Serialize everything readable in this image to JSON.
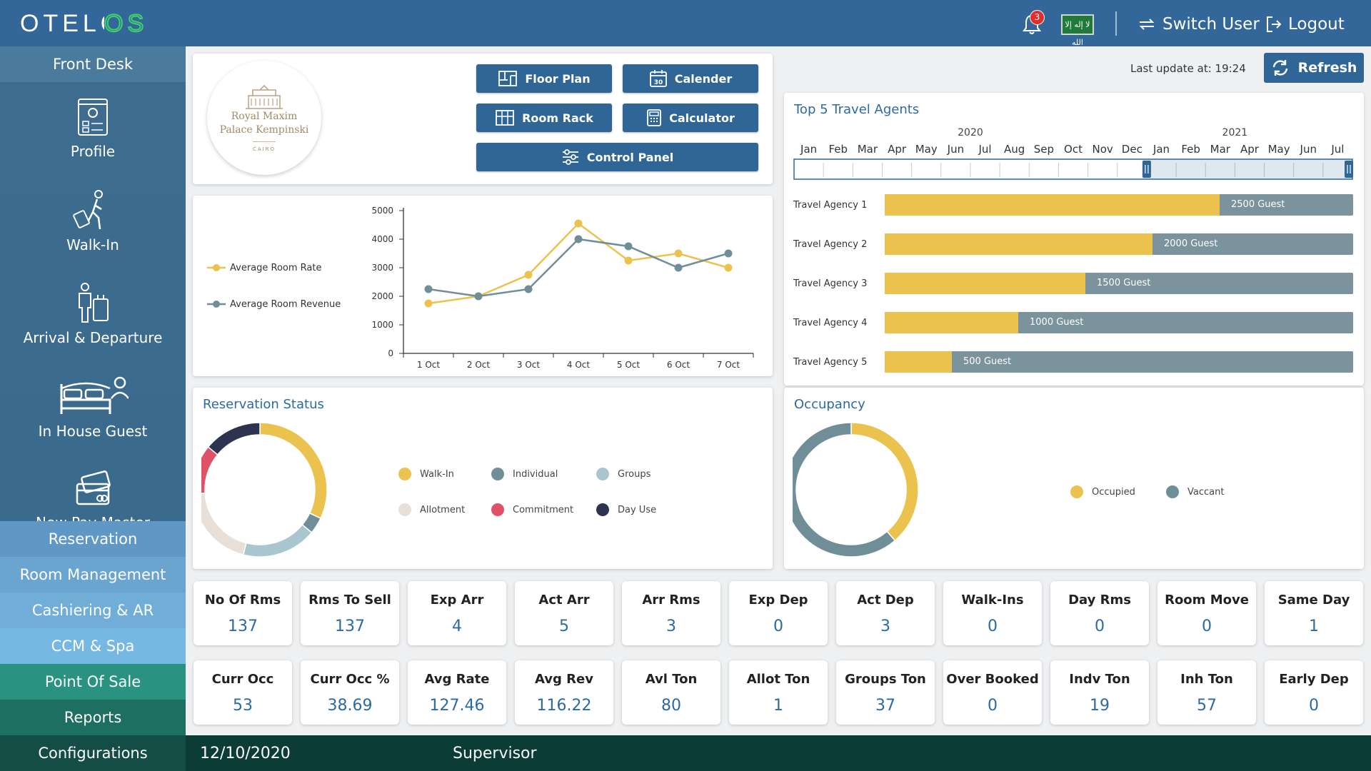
{
  "app": {
    "logo_text": "OTELOS"
  },
  "topbar": {
    "notifications": "3",
    "flag_label": "لا إله إلا الله",
    "switch_user": "Switch User",
    "logout": "Logout"
  },
  "sidebar": {
    "header": "Front Desk",
    "tiles": [
      {
        "label": "Profile",
        "icon": "profile-card-icon"
      },
      {
        "label": "Walk-In",
        "icon": "walking-guest-icon"
      },
      {
        "label": "Arrival & Departure",
        "icon": "arrival-departure-icon"
      },
      {
        "label": "In House Guest",
        "icon": "bed-guest-icon"
      },
      {
        "label": "New Pay Master",
        "icon": "payment-card-icon"
      }
    ],
    "menu": [
      {
        "label": "Reservation",
        "color": "#5f98c4"
      },
      {
        "label": "Room Management",
        "color": "#6aa5cf"
      },
      {
        "label": "Cashiering & AR",
        "color": "#70aed8"
      },
      {
        "label": "CCM & Spa",
        "color": "#77b8e2"
      },
      {
        "label": "Point Of Sale",
        "color": "#2a9281"
      },
      {
        "label": "Reports",
        "color": "#1d6f62"
      },
      {
        "label": "Configurations",
        "color": "#144d45"
      }
    ]
  },
  "hotel": {
    "name_line1": "Royal Maxim",
    "name_line2": "Palace Kempinski",
    "city": "CAIRO"
  },
  "buttons": {
    "floor_plan": "Floor Plan",
    "calender": "Calender",
    "calender_day": "30",
    "room_rack": "Room Rack",
    "calculator": "Calculator",
    "control_panel": "Control Panel",
    "refresh": "Refresh"
  },
  "last_update": "Last update at: 19:24",
  "chart_data": [
    {
      "type": "line",
      "x": [
        "1 Oct",
        "2 Oct",
        "3 Oct",
        "4 Oct",
        "5 Oct",
        "6 Oct",
        "7 Oct"
      ],
      "series": [
        {
          "name": "Average Room Rate",
          "color": "#ebc24e",
          "values": [
            1750,
            2000,
            2750,
            4550,
            3250,
            3500,
            3000
          ]
        },
        {
          "name": "Average Room Revenue",
          "color": "#6f8e98",
          "values": [
            2250,
            2000,
            2250,
            4000,
            3750,
            3000,
            3500
          ]
        }
      ],
      "yticks": [
        0,
        1000,
        2000,
        3000,
        4000,
        5000
      ],
      "ylim": [
        0,
        5000
      ]
    },
    {
      "type": "bar",
      "title": "Top 5 Travel Agents",
      "categories": [
        "Travel Agency 1",
        "Travel Agency 2",
        "Travel Agency 3",
        "Travel Agency 4",
        "Travel Agency 5"
      ],
      "values": [
        2500,
        2000,
        1500,
        1000,
        500
      ],
      "value_labels": [
        "2500 Guest",
        "2000 Guest",
        "1500 Guest",
        "1000 Guest",
        "500 Guest"
      ],
      "xlim": [
        0,
        3500
      ],
      "timeline": {
        "years": [
          "2020",
          "2021"
        ],
        "months": [
          "Jan",
          "Feb",
          "Mar",
          "Apr",
          "May",
          "Jun",
          "Jul",
          "Aug",
          "Sep",
          "Oct",
          "Nov",
          "Dec",
          "Jan",
          "Feb",
          "Mar",
          "Apr",
          "May",
          "Jun",
          "Jul"
        ],
        "selected_from": "Jan 2021",
        "selected_to": "Jul 2021"
      }
    },
    {
      "type": "pie",
      "title": "Reservation Status",
      "labels": [
        "Walk-In",
        "Individual",
        "Groups",
        "Allotment",
        "Commitment",
        "Day Use"
      ],
      "colors": [
        "#ebc24e",
        "#6f8e98",
        "#a9c6cf",
        "#e8e0d8",
        "#e0526a",
        "#2e3450"
      ],
      "values": [
        32,
        4,
        18,
        20,
        12,
        14
      ]
    },
    {
      "type": "pie",
      "title": "Occupancy",
      "labels": [
        "Occupied",
        "Vaccant"
      ],
      "colors": [
        "#ebc24e",
        "#6f8e98"
      ],
      "values": [
        38.69,
        61.31
      ]
    }
  ],
  "stats_row1": [
    {
      "label": "No Of Rms",
      "value": "137"
    },
    {
      "label": "Rms To Sell",
      "value": "137"
    },
    {
      "label": "Exp Arr",
      "value": "4"
    },
    {
      "label": "Act Arr",
      "value": "5"
    },
    {
      "label": "Arr Rms",
      "value": "3"
    },
    {
      "label": "Exp Dep",
      "value": "0"
    },
    {
      "label": "Act Dep",
      "value": "3"
    },
    {
      "label": "Walk-Ins",
      "value": "0"
    },
    {
      "label": "Day Rms",
      "value": "0"
    },
    {
      "label": "Room Move",
      "value": "0"
    },
    {
      "label": "Same Day",
      "value": "1"
    }
  ],
  "stats_row2": [
    {
      "label": "Curr Occ",
      "value": "53"
    },
    {
      "label": "Curr Occ %",
      "value": "38.69"
    },
    {
      "label": "Avg Rate",
      "value": "127.46"
    },
    {
      "label": "Avg Rev",
      "value": "116.22"
    },
    {
      "label": "Avl Ton",
      "value": "80"
    },
    {
      "label": "Allot Ton",
      "value": "1"
    },
    {
      "label": "Groups Ton",
      "value": "37"
    },
    {
      "label": "Over Booked",
      "value": "0"
    },
    {
      "label": "Indv Ton",
      "value": "19"
    },
    {
      "label": "Inh Ton",
      "value": "57"
    },
    {
      "label": "Early Dep",
      "value": "0"
    }
  ],
  "footer": {
    "date": "12/10/2020",
    "user": "Supervisor"
  }
}
